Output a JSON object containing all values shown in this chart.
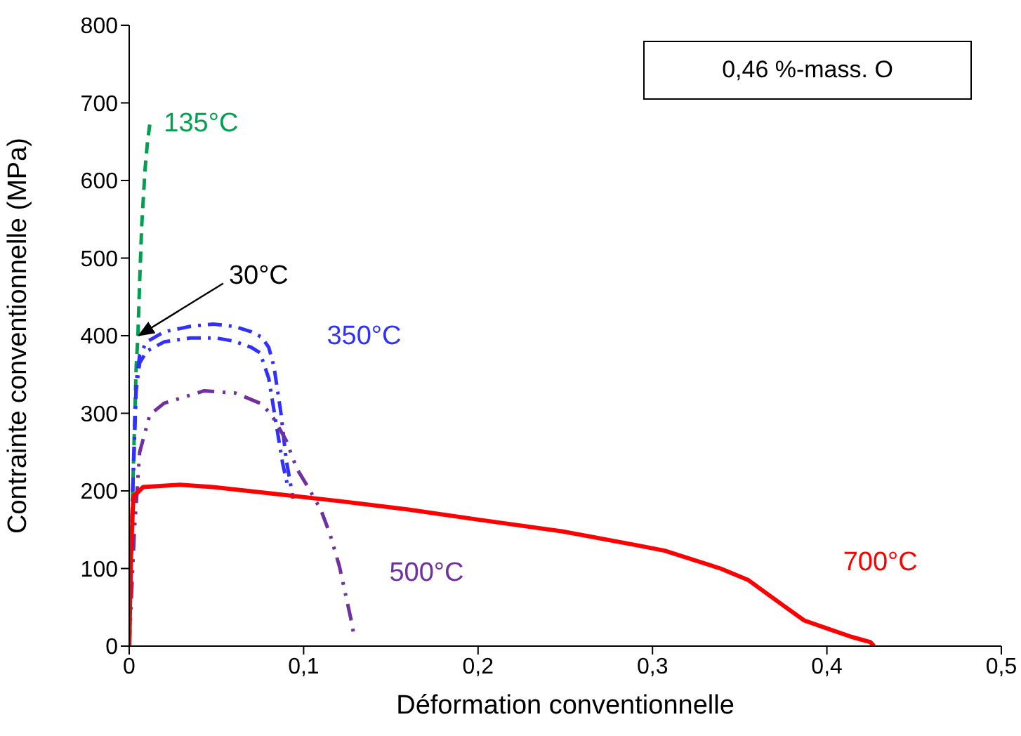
{
  "chart_data": {
    "type": "line",
    "xlabel": "Déformation conventionnelle",
    "ylabel": "Contrainte conventionnelle (MPa)",
    "xlim": [
      0,
      0.5
    ],
    "xticks": [
      0,
      {
        "value": 0.1,
        "label": "0,1"
      },
      {
        "value": 0.2,
        "label": "0,2"
      },
      {
        "value": 0.3,
        "label": "0,3"
      },
      {
        "value": 0.4,
        "label": "0,4"
      },
      {
        "value": 0.5,
        "label": "0,5"
      }
    ],
    "ylim": [
      0,
      800
    ],
    "yticks": [
      0,
      100,
      200,
      300,
      400,
      500,
      600,
      700,
      800
    ],
    "grid": false,
    "legend": false,
    "marker": "none",
    "series": [
      {
        "name": "135°C",
        "color": "#00a050",
        "line_style": "dashed",
        "x": [
          0,
          0.002,
          0.004,
          0.005,
          0.006,
          0.0072,
          0.0091,
          0.0105,
          0.0118
        ],
        "values": [
          0,
          200,
          360,
          400,
          470,
          543,
          615,
          650,
          672
        ]
      },
      {
        "name": "350°C",
        "color": "#3030ff",
        "line_style": "dashed",
        "x": [
          0,
          0.002,
          0.004,
          0.006,
          0.01,
          0.02,
          0.035,
          0.048,
          0.06,
          0.07,
          0.076,
          0.08,
          0.083,
          0.087,
          0.09,
          0.094
        ],
        "values": [
          0,
          200,
          340,
          375,
          392,
          405,
          412,
          415,
          412,
          405,
          398,
          385,
          360,
          300,
          240,
          190
        ]
      },
      {
        "color": "#3030ff",
        "line_style": "dashed",
        "x": [
          0,
          0.002,
          0.004,
          0.006,
          0.01,
          0.02,
          0.035,
          0.05,
          0.06,
          0.07,
          0.075,
          0.08,
          0.084,
          0.088,
          0.091
        ],
        "values": [
          0,
          200,
          330,
          365,
          380,
          392,
          397,
          397,
          393,
          385,
          378,
          345,
          290,
          235,
          205
        ]
      },
      {
        "name": "500°C",
        "color": "#7030a0",
        "line_style": "dashed",
        "x": [
          0,
          0.003,
          0.006,
          0.0118,
          0.02,
          0.043,
          0.061,
          0.075,
          0.081,
          0.085,
          0.09,
          0.096,
          0.103,
          0.11,
          0.115,
          0.1205,
          0.127,
          0.129
        ],
        "values": [
          0,
          150,
          250,
          298,
          313,
          329,
          326,
          313,
          300,
          285,
          265,
          229,
          203,
          175,
          145,
          103,
          36,
          12
        ]
      },
      {
        "name": "700°C",
        "color": "#ff0000",
        "line_style": "solid",
        "x": [
          0,
          0.001,
          0.0024,
          0.008,
          0.029,
          0.048,
          0.08,
          0.12,
          0.16,
          0.2,
          0.248,
          0.291,
          0.307,
          0.339,
          0.355,
          0.374,
          0.387,
          0.401,
          0.414,
          0.425,
          0.427
        ],
        "values": [
          0,
          120,
          193,
          205,
          208,
          205,
          197,
          187,
          176,
          163,
          148,
          130,
          123,
          100,
          85,
          54,
          33,
          22,
          12,
          5,
          0
        ]
      }
    ],
    "annotations": [
      "0,46 %-mass. O",
      {
        "text": "30°C",
        "x": 0.004,
        "y": 395
      }
    ]
  }
}
